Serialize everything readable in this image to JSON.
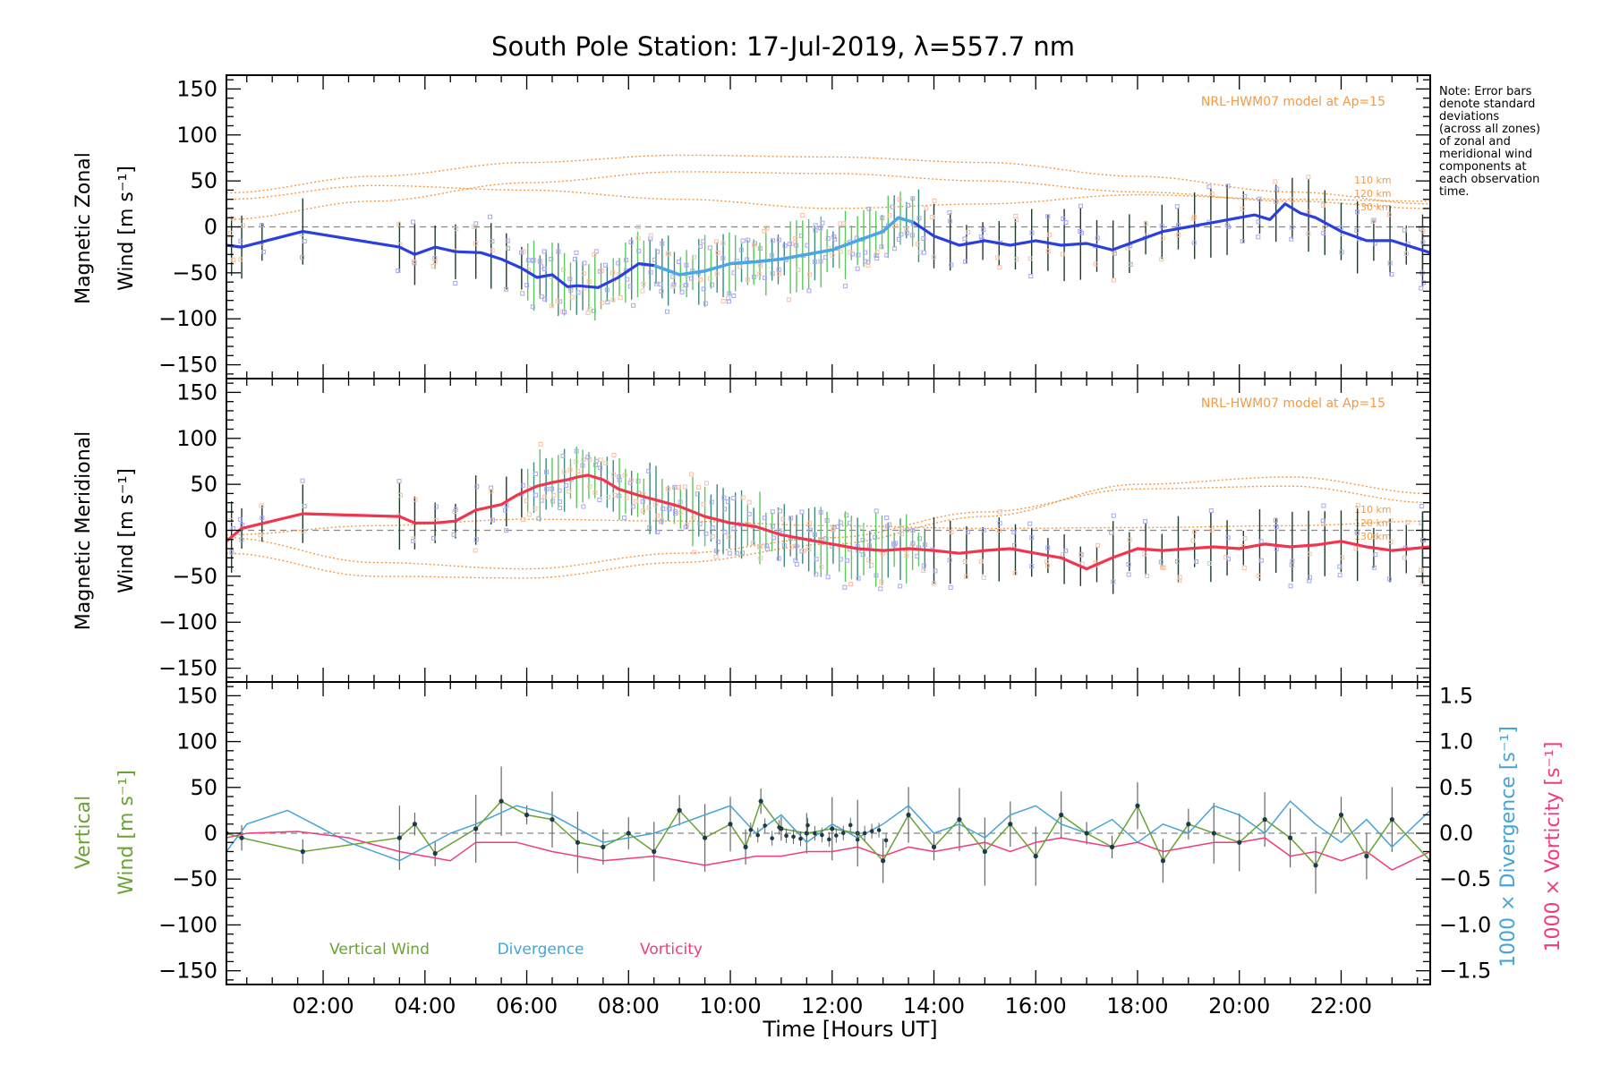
{
  "title": "South Pole Station: 17-Jul-2019, λ=557.7 nm",
  "note_lines": [
    "Note: Error bars",
    "denote standard",
    "deviations",
    "(across all zones)",
    "of zonal and",
    "meridional wind",
    "components at",
    "each observation",
    "time."
  ],
  "model_label": "NRL-HWM07 model at Ap=15",
  "altitude_labels": [
    "110 km",
    "120 km",
    "130 km"
  ],
  "colors": {
    "zonal_line": "#2b3fe0",
    "zonal_line_light": "#46a8e8",
    "meridional_line": "#f2344f",
    "vertical": "#6aa334",
    "divergence": "#46a5d6",
    "vorticity": "#f23a7e",
    "model": "#f39a45",
    "scatter": "#a8a8ee",
    "errorbar_dark": "#1f3b2a",
    "errorbar_green": "#5ac85a"
  },
  "chart_data": [
    {
      "type": "line",
      "panel": "zonal",
      "ylabel_line1": "Magnetic Zonal",
      "ylabel_line2": "Wind [m s⁻¹]",
      "xlim": [
        0.1,
        23.75
      ],
      "ylim": [
        -165,
        165
      ],
      "yticks": [
        150,
        100,
        50,
        0,
        -50,
        -100,
        -150
      ],
      "series": [
        {
          "name": "Magnetic Zonal Wind",
          "x": [
            0.1,
            0.4,
            1.6,
            3.5,
            3.8,
            4.2,
            4.6,
            5.1,
            5.5,
            5.9,
            6.2,
            6.5,
            6.8,
            7.0,
            7.4,
            7.8,
            8.2,
            8.5,
            9.0,
            9.5,
            10.0,
            10.5,
            11.0,
            11.5,
            12.0,
            12.5,
            13.0,
            13.3,
            13.6,
            14.0,
            14.5,
            15.0,
            15.5,
            16.0,
            16.5,
            17.0,
            17.5,
            18.0,
            18.5,
            19.0,
            19.5,
            20.0,
            20.3,
            20.6,
            20.9,
            21.2,
            21.5,
            22.0,
            22.5,
            23.0,
            23.75
          ],
          "y": [
            -20,
            -22,
            -5,
            -22,
            -30,
            -22,
            -27,
            -28,
            -35,
            -45,
            -55,
            -52,
            -65,
            -64,
            -66,
            -55,
            -40,
            -42,
            -52,
            -48,
            -40,
            -38,
            -35,
            -30,
            -25,
            -15,
            -5,
            10,
            5,
            -10,
            -20,
            -15,
            -20,
            -15,
            -20,
            -18,
            -25,
            -15,
            -5,
            0,
            5,
            10,
            13,
            8,
            25,
            15,
            10,
            -5,
            -15,
            -15,
            -28
          ]
        }
      ],
      "model_curves": [
        {
          "name": "HWM07 A",
          "x": [
            0.1,
            3,
            6,
            9,
            12,
            15,
            18,
            21,
            23.75
          ],
          "y": [
            37,
            55,
            70,
            78,
            76,
            70,
            55,
            38,
            25
          ]
        },
        {
          "name": "HWM07 B",
          "x": [
            0.1,
            3,
            6,
            9,
            12,
            15,
            18,
            21,
            23.75
          ],
          "y": [
            8,
            28,
            48,
            60,
            58,
            50,
            38,
            28,
            20
          ]
        },
        {
          "name": "HWM07 C",
          "x": [
            0.1,
            3,
            6,
            9,
            12,
            15,
            18,
            21,
            23.75
          ],
          "y": [
            30,
            45,
            40,
            30,
            20,
            25,
            35,
            30,
            28
          ]
        }
      ]
    },
    {
      "type": "line",
      "panel": "meridional",
      "ylabel_line1": "Magnetic Meridional",
      "ylabel_line2": "Wind [m s⁻¹]",
      "xlim": [
        0.1,
        23.75
      ],
      "ylim": [
        -165,
        165
      ],
      "yticks": [
        150,
        100,
        50,
        0,
        -50,
        -100,
        -150
      ],
      "series": [
        {
          "name": "Magnetic Meridional Wind",
          "x": [
            0.1,
            0.4,
            1.6,
            3.5,
            3.8,
            4.2,
            4.6,
            5.0,
            5.5,
            5.8,
            6.2,
            6.5,
            6.8,
            7.0,
            7.2,
            7.5,
            7.8,
            8.2,
            8.6,
            9.0,
            9.5,
            10.0,
            10.5,
            11.0,
            11.5,
            12.0,
            12.5,
            13.0,
            13.5,
            14.0,
            14.5,
            15.0,
            15.5,
            16.0,
            16.5,
            17.0,
            17.5,
            18.0,
            18.5,
            19.0,
            19.5,
            20.0,
            20.5,
            21.0,
            21.5,
            22.0,
            22.5,
            23.0,
            23.75
          ],
          "y": [
            -12,
            2,
            18,
            15,
            8,
            8,
            10,
            22,
            28,
            38,
            48,
            52,
            55,
            58,
            60,
            55,
            45,
            38,
            32,
            26,
            15,
            8,
            4,
            -5,
            -10,
            -15,
            -20,
            -22,
            -20,
            -22,
            -25,
            -22,
            -20,
            -25,
            -30,
            -42,
            -30,
            -20,
            -22,
            -20,
            -18,
            -20,
            -15,
            -18,
            -16,
            -12,
            -18,
            -22,
            -18
          ]
        }
      ],
      "model_curves": [
        {
          "name": "HWM07 A",
          "x": [
            0.1,
            3,
            6,
            9,
            12,
            15,
            18,
            21,
            23.75
          ],
          "y": [
            -25,
            -50,
            -52,
            -35,
            -15,
            15,
            50,
            58,
            40
          ]
        },
        {
          "name": "HWM07 B",
          "x": [
            0.1,
            3,
            6,
            9,
            12,
            15,
            18,
            21,
            23.75
          ],
          "y": [
            -8,
            -35,
            -42,
            -25,
            -8,
            20,
            45,
            48,
            30
          ]
        },
        {
          "name": "HWM07 C",
          "x": [
            0.1,
            3,
            6,
            9,
            12,
            15,
            18,
            21,
            23.75
          ],
          "y": [
            -5,
            5,
            12,
            10,
            5,
            2,
            3,
            5,
            10
          ]
        }
      ]
    },
    {
      "type": "line",
      "panel": "vertical",
      "ylabel_line1": "Vertical",
      "ylabel_line2": "Wind [m s⁻¹]",
      "xlabel": "Time [Hours UT]",
      "xlim": [
        0.1,
        23.75
      ],
      "ylim": [
        -165,
        165
      ],
      "yticks": [
        150,
        100,
        50,
        0,
        -50,
        -100,
        -150
      ],
      "xticks": [
        "02:00",
        "04:00",
        "06:00",
        "08:00",
        "10:00",
        "12:00",
        "14:00",
        "16:00",
        "18:00",
        "20:00",
        "22:00"
      ],
      "xtick_values": [
        2,
        4,
        6,
        8,
        10,
        12,
        14,
        16,
        18,
        20,
        22
      ],
      "right_axis": {
        "ylim": [
          -1.65,
          1.65
        ],
        "ticks": [
          "1.5",
          "1.0",
          "0.5",
          "0.0",
          "−0.5",
          "−1.0",
          "−1.5"
        ],
        "tick_values": [
          1.5,
          1.0,
          0.5,
          0.0,
          -0.5,
          -1.0,
          -1.5
        ]
      },
      "right_label_divergence": "1000 × Divergence [s⁻¹]",
      "right_label_vorticity": "1000 × Vorticity [s⁻¹]",
      "legend": [
        "Vertical Wind",
        "Divergence",
        "Vorticity"
      ],
      "series": [
        {
          "name": "Vertical Wind",
          "x": [
            0.1,
            0.4,
            1.6,
            3.5,
            3.8,
            4.2,
            5.0,
            5.5,
            6.0,
            6.5,
            7.0,
            7.5,
            8.0,
            8.5,
            9.0,
            9.5,
            10.0,
            10.3,
            10.6,
            11.0,
            11.5,
            12.0,
            12.5,
            13.0,
            13.5,
            14.0,
            14.5,
            15.0,
            15.5,
            16.0,
            16.5,
            17.0,
            17.5,
            18.0,
            18.5,
            19.0,
            19.5,
            20.0,
            20.5,
            21.0,
            21.5,
            22.0,
            22.5,
            23.0,
            23.75
          ],
          "y": [
            0,
            -5,
            -20,
            -5,
            10,
            -22,
            5,
            35,
            20,
            15,
            -10,
            -15,
            0,
            -20,
            25,
            -5,
            10,
            -15,
            35,
            5,
            0,
            5,
            0,
            -30,
            20,
            -15,
            15,
            -20,
            10,
            -25,
            20,
            0,
            -15,
            30,
            -30,
            10,
            0,
            -10,
            15,
            -5,
            -35,
            20,
            -25,
            15,
            -30
          ]
        },
        {
          "name": "Divergence",
          "x": [
            0.1,
            0.5,
            1.3,
            2.5,
            3.5,
            4.5,
            5.0,
            5.8,
            6.5,
            7.5,
            8.5,
            9.5,
            10.0,
            10.5,
            11.0,
            11.5,
            12.0,
            12.5,
            13.0,
            13.5,
            14.0,
            14.5,
            15.0,
            15.5,
            16.0,
            16.5,
            17.0,
            17.5,
            18.0,
            18.5,
            19.0,
            19.5,
            20.0,
            20.5,
            21.0,
            21.5,
            22.0,
            22.5,
            23.0,
            23.75
          ],
          "y": [
            -0.2,
            0.1,
            0.25,
            -0.1,
            -0.3,
            0.0,
            0.1,
            0.3,
            0.2,
            -0.1,
            0.0,
            0.2,
            0.3,
            0.0,
            0.2,
            -0.1,
            0.1,
            -0.05,
            0.1,
            0.3,
            0.0,
            0.1,
            -0.05,
            0.2,
            0.3,
            0.1,
            0.0,
            0.15,
            -0.1,
            0.1,
            0.0,
            0.3,
            0.2,
            0.0,
            0.35,
            0.1,
            -0.1,
            0.15,
            -0.15,
            0.25
          ]
        },
        {
          "name": "Vorticity",
          "x": [
            0.1,
            0.5,
            1.5,
            2.5,
            3.5,
            4.5,
            5.0,
            5.8,
            6.5,
            7.5,
            8.5,
            9.5,
            10.0,
            10.5,
            11.0,
            11.5,
            12.0,
            12.5,
            13.0,
            13.5,
            14.0,
            14.5,
            15.0,
            15.5,
            16.0,
            16.5,
            17.0,
            17.5,
            18.0,
            18.5,
            19.0,
            19.5,
            20.0,
            20.5,
            21.0,
            21.5,
            22.0,
            22.5,
            23.0,
            23.75
          ],
          "y": [
            -0.05,
            0.0,
            0.02,
            -0.05,
            -0.2,
            -0.3,
            -0.1,
            -0.1,
            -0.2,
            -0.3,
            -0.25,
            -0.35,
            -0.3,
            -0.25,
            -0.25,
            -0.2,
            -0.2,
            -0.15,
            -0.25,
            -0.15,
            -0.2,
            -0.15,
            -0.1,
            -0.2,
            -0.1,
            -0.05,
            -0.1,
            -0.15,
            -0.1,
            -0.2,
            -0.15,
            -0.1,
            -0.1,
            -0.05,
            -0.25,
            -0.2,
            -0.3,
            -0.2,
            -0.4,
            -0.2
          ]
        }
      ]
    }
  ]
}
